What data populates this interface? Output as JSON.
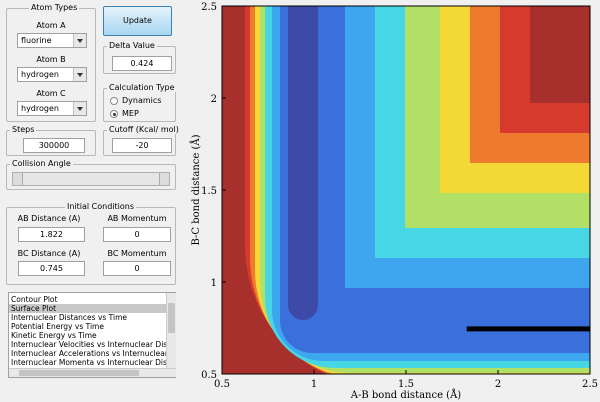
{
  "atom_types": {
    "title": "Atom Types",
    "atoms": [
      {
        "label": "Atom A",
        "value": "fluorine"
      },
      {
        "label": "Atom B",
        "value": "hydrogen"
      },
      {
        "label": "Atom C",
        "value": "hydrogen"
      }
    ]
  },
  "update_button": "Update",
  "delta_value": {
    "label": "Delta Value",
    "value": "0.424"
  },
  "calculation_type": {
    "title": "Calculation Type",
    "options": [
      "Dynamics",
      "MEP"
    ]
  },
  "steps": {
    "label": "Steps",
    "value": "300000"
  },
  "cutoff": {
    "label": "Cutoff (Kcal/ mol)",
    "value": "-20"
  },
  "collision_angle": {
    "label": "Collision Angle"
  },
  "initial_conditions": {
    "title": "Initial Conditions",
    "fields": [
      {
        "label": "AB Distance (A)",
        "value": "1.822"
      },
      {
        "label": "AB Momentum",
        "value": "0"
      },
      {
        "label": "BC Distance (A)",
        "value": "0.745"
      },
      {
        "label": "BC Momentum",
        "value": "0"
      }
    ]
  },
  "plot_list": [
    "Contour Plot",
    "Surface Plot",
    "Internuclear Distances vs Time",
    "Potential Energy vs Time",
    "Kinetic Energy vs Time",
    "Internuclear Velocities vs Internuclear Distance",
    "Internuclear Accelerations vs Internuclear Dista",
    "Internuclear Momenta vs Internuclear Distance"
  ],
  "chart_data": {
    "type": "line",
    "xlabel": "A-B bond distance (Å)",
    "ylabel": "B-C bond distance (Å)",
    "xlim": [
      0.5,
      2.5
    ],
    "ylim": [
      0.5,
      2.5
    ],
    "xticks": [
      0.5,
      1,
      1.5,
      2,
      2.5
    ],
    "yticks": [
      0.5,
      1,
      1.5,
      2,
      2.5
    ],
    "series": [
      {
        "color": "#000000",
        "x": [
          1.83,
          2.5
        ],
        "values": [
          0.745,
          0.745
        ]
      }
    ]
  }
}
